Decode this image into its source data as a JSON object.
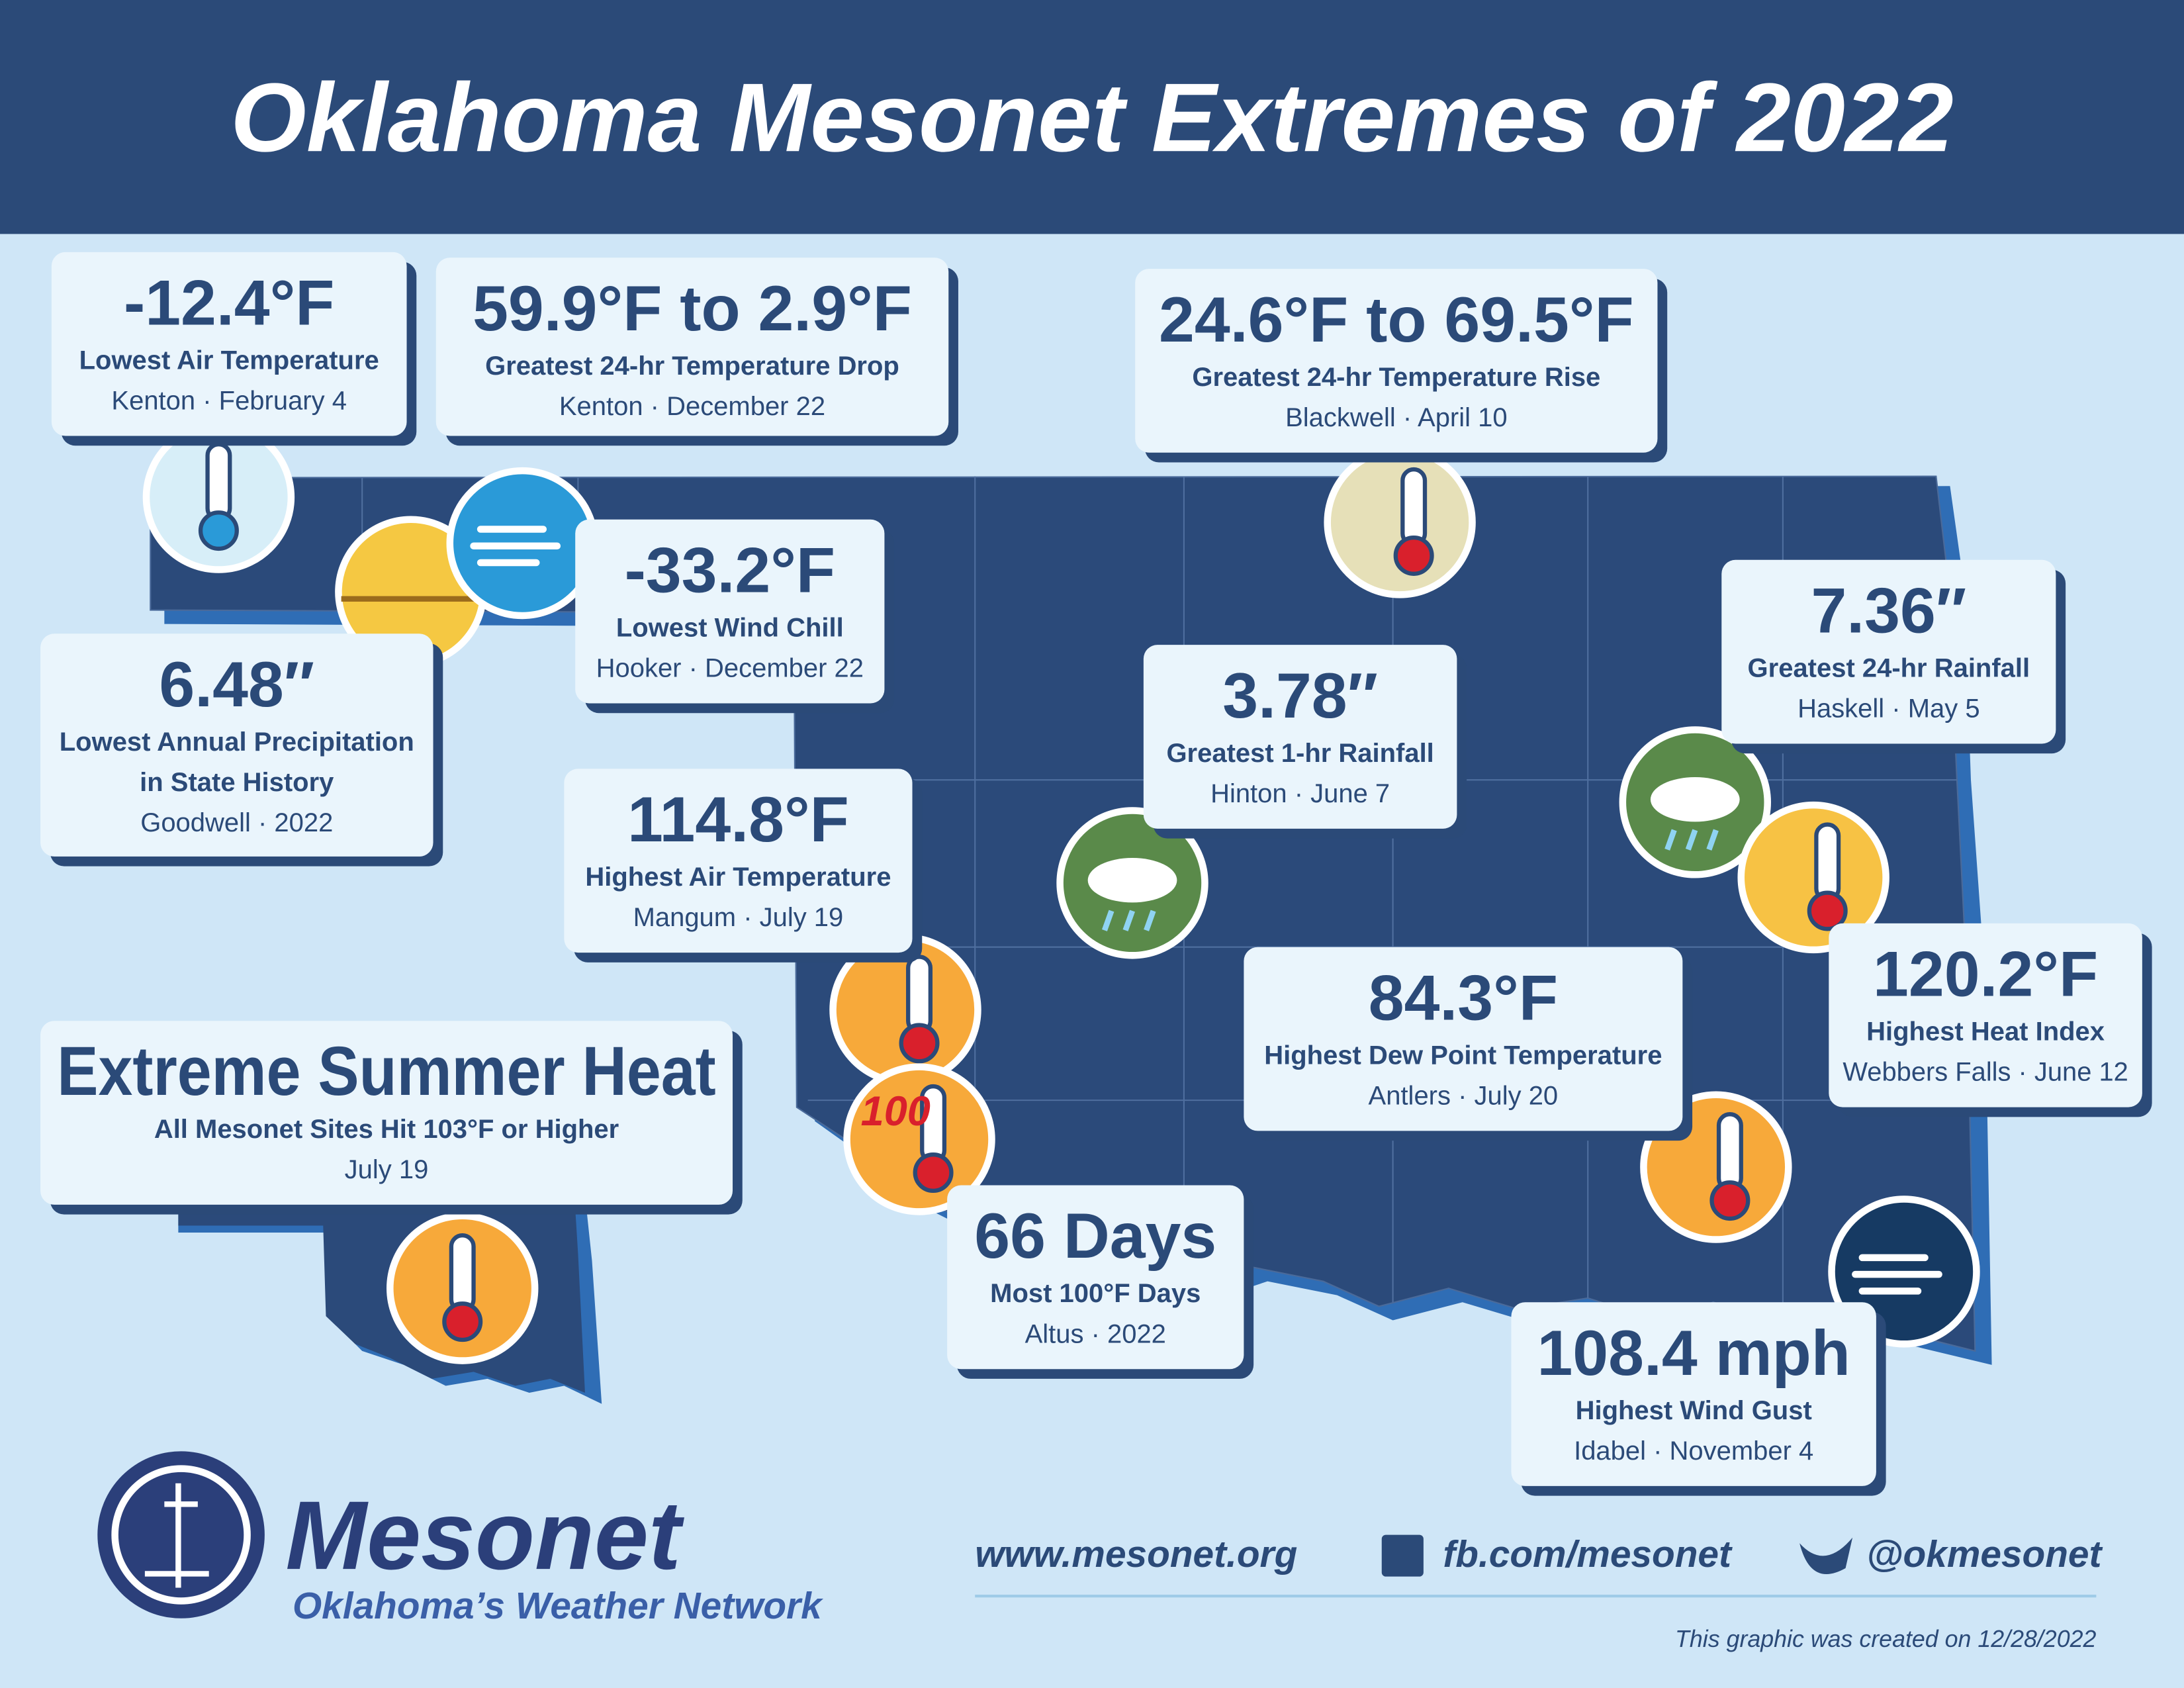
{
  "header": {
    "title": "Oklahoma Mesonet Extremes of 2022"
  },
  "cards": [
    {
      "value": "-12.4°F",
      "labels": [
        "Lowest Air Temperature"
      ],
      "detail": "Kenton · February 4"
    },
    {
      "value": "59.9°F to 2.9°F",
      "labels": [
        "Greatest 24-hr Temperature Drop"
      ],
      "detail": "Kenton · December 22"
    },
    {
      "value": "24.6°F to 69.5°F",
      "labels": [
        "Greatest 24-hr Temperature Rise"
      ],
      "detail": "Blackwell · April 10"
    },
    {
      "value": "-33.2°F",
      "labels": [
        "Lowest Wind Chill"
      ],
      "detail": "Hooker · December 22"
    },
    {
      "value": "6.48″",
      "labels": [
        "Lowest Annual Precipitation",
        "in State History"
      ],
      "detail": "Goodwell · 2022"
    },
    {
      "value": "3.78″",
      "labels": [
        "Greatest 1-hr Rainfall"
      ],
      "detail": "Hinton · June 7"
    },
    {
      "value": "7.36″",
      "labels": [
        "Greatest 24-hr Rainfall"
      ],
      "detail": "Haskell · May 5"
    },
    {
      "value": "114.8°F",
      "labels": [
        "Highest Air Temperature"
      ],
      "detail": "Mangum · July 19"
    },
    {
      "value": "84.3°F",
      "labels": [
        "Highest Dew Point Temperature"
      ],
      "detail": "Antlers · July 20"
    },
    {
      "value": "120.2°F",
      "labels": [
        "Highest Heat Index"
      ],
      "detail": "Webbers Falls · June 12"
    },
    {
      "value": "Extreme Summer Heat",
      "labels": [
        "All Mesonet Sites Hit 103°F or Higher"
      ],
      "detail": "July 19"
    },
    {
      "value": "66 Days",
      "labels": [
        "Most 100°F Days"
      ],
      "detail": "Altus · 2022"
    },
    {
      "value": "108.4 mph",
      "labels": [
        "Highest Wind Gust"
      ],
      "detail": "Idabel · November 4"
    }
  ],
  "icon_text": "100",
  "footer": {
    "logo": "Mesonet",
    "tagline": "Oklahoma’s Weather Network",
    "website": "www.mesonet.org",
    "facebook": "fb.com/mesonet",
    "twitter": "@okmesonet",
    "note": "This graphic was created on 12/28/2022"
  }
}
